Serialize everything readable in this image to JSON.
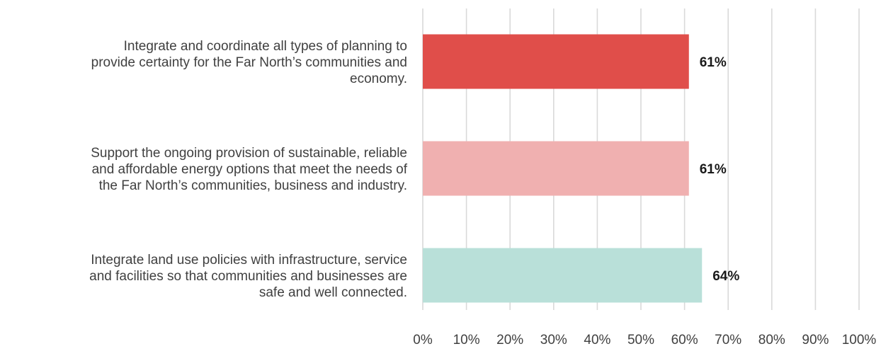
{
  "chart_data": {
    "type": "bar",
    "orientation": "horizontal",
    "categories": [
      [
        "Integrate and coordinate all types of planning to",
        "provide certainty for the Far North’s communities and",
        "economy."
      ],
      [
        "Support the ongoing provision of sustainable, reliable",
        "and affordable energy options that meet the needs of",
        "the Far North’s communities, business and industry."
      ],
      [
        "Integrate land use policies with infrastructure, service",
        "and facilities so that communities and businesses are",
        "safe and well connected."
      ]
    ],
    "values": [
      61,
      61,
      64
    ],
    "data_labels": [
      "61%",
      "61%",
      "64%"
    ],
    "colors": [
      "#e04e4a",
      "#f0b0b0",
      "#b9e0d9"
    ],
    "xlim": [
      0,
      100
    ],
    "xticks": [
      0,
      10,
      20,
      30,
      40,
      50,
      60,
      70,
      80,
      90,
      100
    ],
    "xtick_labels": [
      "0%",
      "10%",
      "20%",
      "30%",
      "40%",
      "50%",
      "60%",
      "70%",
      "80%",
      "90%",
      "100%"
    ],
    "grid": "vertical",
    "grid_color": "#d9d9d9",
    "legend": "none"
  }
}
